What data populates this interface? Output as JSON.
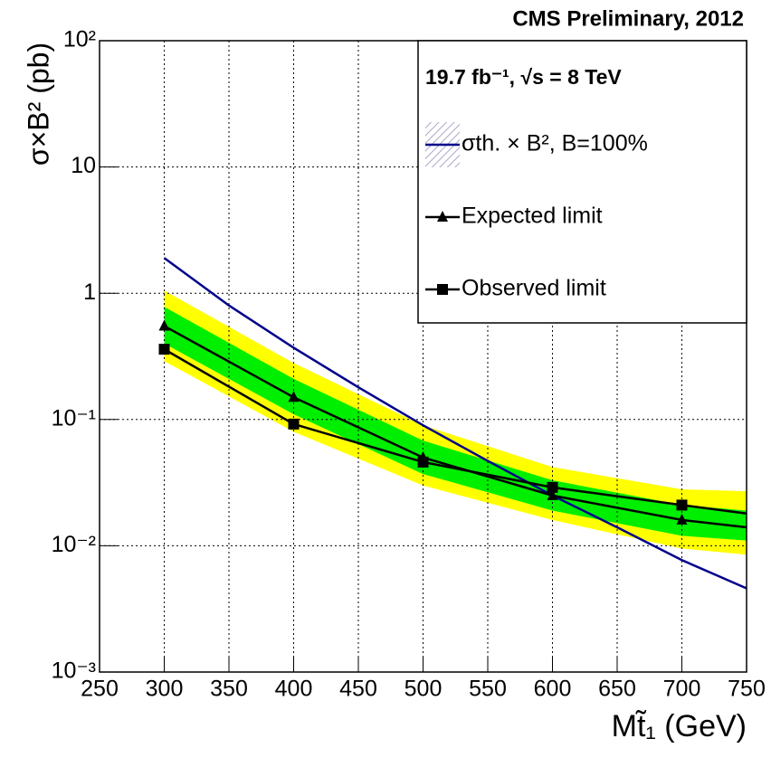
{
  "chart_data": {
    "type": "line",
    "title": "CMS Preliminary, 2012",
    "annotation": "19.7 fb⁻¹, √s = 8 TeV",
    "xlabel": "Mt̃₁ (GeV)",
    "ylabel": "σ×B² (pb)",
    "xlim": [
      250,
      750
    ],
    "ylim": [
      0.001,
      100
    ],
    "log_y": true,
    "grid": true,
    "legend": "upper right",
    "xticks": [
      250,
      300,
      350,
      400,
      450,
      500,
      550,
      600,
      650,
      700,
      750
    ],
    "yticks": [
      {
        "value": 0.001,
        "label": "10⁻³"
      },
      {
        "value": 0.01,
        "label": "10⁻²"
      },
      {
        "value": 0.1,
        "label": "10⁻¹"
      },
      1,
      10,
      {
        "value": 100,
        "label": "10²"
      }
    ],
    "x": [
      300,
      400,
      500,
      600,
      700,
      750
    ],
    "bands": [
      {
        "color": "#ffff00",
        "lower": [
          0.29,
          0.08,
          0.03,
          0.016,
          0.0095,
          0.0085
        ],
        "upper": [
          1.05,
          0.28,
          0.09,
          0.042,
          0.028,
          0.027
        ]
      },
      {
        "color": "#00ee00",
        "lower": [
          0.4,
          0.11,
          0.037,
          0.019,
          0.012,
          0.011
        ],
        "upper": [
          0.78,
          0.21,
          0.068,
          0.033,
          0.021,
          0.019
        ]
      }
    ],
    "series": [
      {
        "name": "σth. × B², B=100%",
        "color": "#00008b",
        "x": [
          300,
          350,
          400,
          450,
          500,
          550,
          600,
          650,
          700,
          750
        ],
        "values": [
          1.9,
          0.8,
          0.37,
          0.18,
          0.09,
          0.047,
          0.025,
          0.014,
          0.0077,
          0.0046
        ]
      },
      {
        "name": "Expected limit",
        "color": "#000000",
        "marker": "triangle",
        "values": [
          0.55,
          0.15,
          0.05,
          0.025,
          0.016,
          0.014
        ]
      },
      {
        "name": "Observed limit",
        "color": "#000000",
        "marker": "square",
        "values": [
          0.36,
          0.092,
          0.046,
          0.029,
          0.021,
          0.018
        ]
      }
    ]
  }
}
